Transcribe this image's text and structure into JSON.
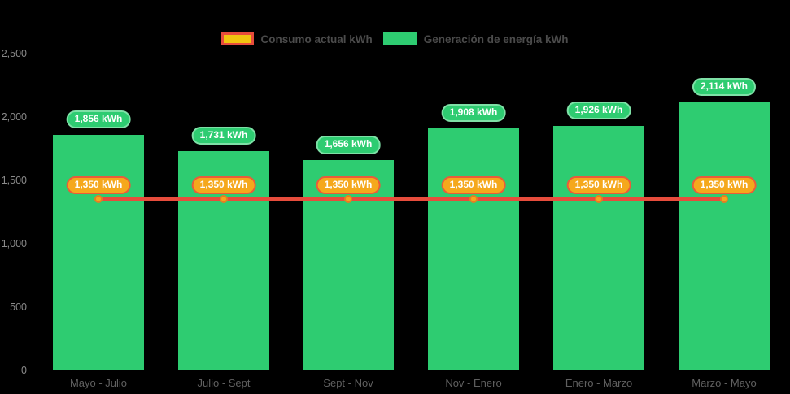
{
  "legend": {
    "items": [
      {
        "label": "Consumo actual kWh",
        "swatch_fill": "#f1c40f",
        "swatch_border": "#e74c3c",
        "kind": "line-series"
      },
      {
        "label": "Generación de energía kWh",
        "swatch_fill": "#2ecc71",
        "swatch_border": "#2ecc71",
        "kind": "bar-series"
      }
    ]
  },
  "chart_data": {
    "type": "bar",
    "categories": [
      "Mayo - Julio",
      "Julio - Sept",
      "Sept - Nov",
      "Nov - Enero",
      "Enero - Marzo",
      "Marzo - Mayo"
    ],
    "series": [
      {
        "name": "Generación de energía kWh",
        "type": "bar",
        "color": "#2ecc71",
        "values": [
          1856,
          1731,
          1656,
          1908,
          1926,
          2114
        ],
        "data_labels": [
          "1,856 kWh",
          "1,731 kWh",
          "1,656 kWh",
          "1,908 kWh",
          "1,926 kWh",
          "2,114 kWh"
        ],
        "label_fill": "#2ecc71",
        "label_border": "#7ee0a6",
        "label_text_color": "#ffffff"
      },
      {
        "name": "Consumo actual kWh",
        "type": "line",
        "color": "#e74c3c",
        "marker_fill": "#f5a81c",
        "marker_border": "#e67e22",
        "values": [
          1350,
          1350,
          1350,
          1350,
          1350,
          1350
        ],
        "data_labels": [
          "1,350 kWh",
          "1,350 kWh",
          "1,350 kWh",
          "1,350 kWh",
          "1,350 kWh",
          "1,350 kWh"
        ],
        "label_fill": "#f5a81c",
        "label_border": "#ea5b3a",
        "label_text_color": "#ffffff"
      }
    ],
    "ylim": [
      0,
      2500
    ],
    "yticks": [
      0,
      500,
      1000,
      1500,
      2000,
      2500
    ],
    "ytick_labels": [
      "0",
      "500",
      "1,000",
      "1,500",
      "2,000",
      "2,500"
    ],
    "grid": false,
    "legend_position": "top",
    "background": "#000000"
  }
}
